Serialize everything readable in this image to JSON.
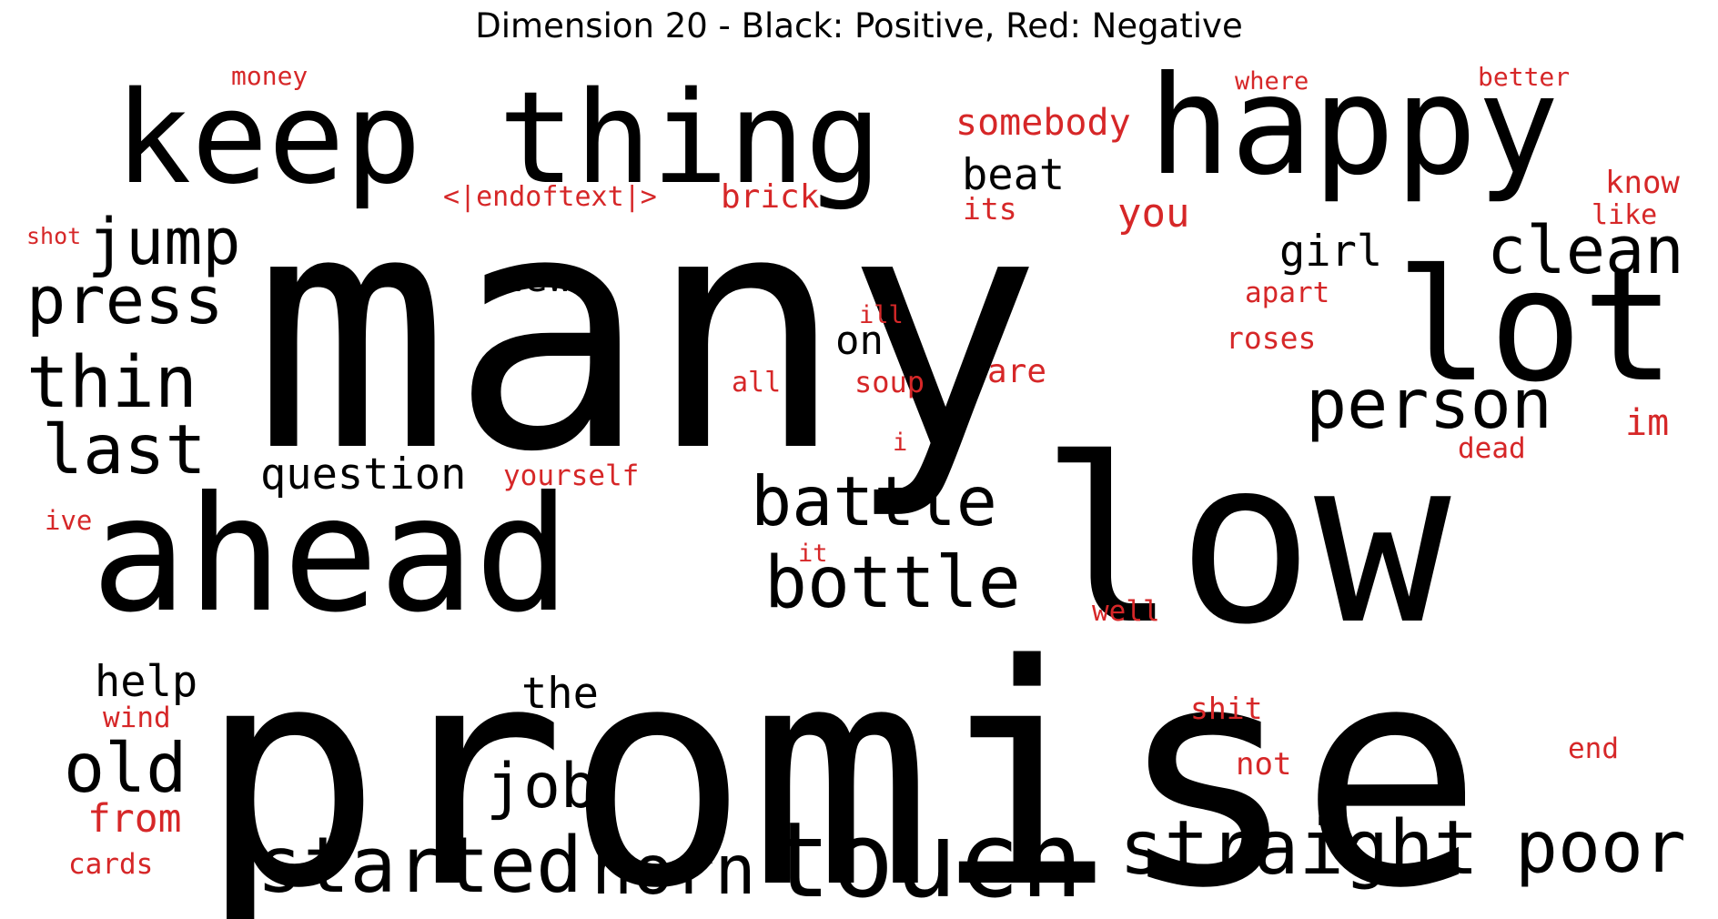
{
  "title": "Dimension 20 - Black: Positive, Red: Negative",
  "colors": {
    "positive": "#000000",
    "negative": "#d62728"
  },
  "words": [
    {
      "text": "many",
      "sign": "positive"
    },
    {
      "text": "promise",
      "sign": "positive"
    },
    {
      "text": "ahead",
      "sign": "positive"
    },
    {
      "text": "low",
      "sign": "positive"
    },
    {
      "text": "keep thing",
      "sign": "positive"
    },
    {
      "text": "happy",
      "sign": "positive"
    },
    {
      "text": "lot",
      "sign": "positive"
    },
    {
      "text": "touch",
      "sign": "positive"
    },
    {
      "text": "straight",
      "sign": "positive"
    },
    {
      "text": "started",
      "sign": "positive"
    },
    {
      "text": "horn",
      "sign": "positive"
    },
    {
      "text": "poor",
      "sign": "positive"
    },
    {
      "text": "battle",
      "sign": "positive"
    },
    {
      "text": "bottle",
      "sign": "positive"
    },
    {
      "text": "person",
      "sign": "positive"
    },
    {
      "text": "clean",
      "sign": "positive"
    },
    {
      "text": "press",
      "sign": "positive"
    },
    {
      "text": "thin",
      "sign": "positive"
    },
    {
      "text": "jump",
      "sign": "positive"
    },
    {
      "text": "last",
      "sign": "positive"
    },
    {
      "text": "old",
      "sign": "positive"
    },
    {
      "text": "job",
      "sign": "positive"
    },
    {
      "text": "question",
      "sign": "positive"
    },
    {
      "text": "help",
      "sign": "positive"
    },
    {
      "text": "the",
      "sign": "positive"
    },
    {
      "text": "beat",
      "sign": "positive"
    },
    {
      "text": "girl",
      "sign": "positive"
    },
    {
      "text": "new",
      "sign": "positive"
    },
    {
      "text": "on",
      "sign": "positive"
    },
    {
      "text": "somebody",
      "sign": "negative"
    },
    {
      "text": "you",
      "sign": "negative"
    },
    {
      "text": "money",
      "sign": "negative"
    },
    {
      "text": "where",
      "sign": "negative"
    },
    {
      "text": "better",
      "sign": "negative"
    },
    {
      "text": "know",
      "sign": "negative"
    },
    {
      "text": "like",
      "sign": "negative"
    },
    {
      "text": "<|endoftext|>",
      "sign": "negative"
    },
    {
      "text": "brick",
      "sign": "negative"
    },
    {
      "text": "its",
      "sign": "negative"
    },
    {
      "text": "shot",
      "sign": "negative"
    },
    {
      "text": "apart",
      "sign": "negative"
    },
    {
      "text": "roses",
      "sign": "negative"
    },
    {
      "text": "ill",
      "sign": "negative"
    },
    {
      "text": "are",
      "sign": "negative"
    },
    {
      "text": "all",
      "sign": "negative"
    },
    {
      "text": "soup",
      "sign": "negative"
    },
    {
      "text": "im",
      "sign": "negative"
    },
    {
      "text": "i",
      "sign": "negative"
    },
    {
      "text": "dead",
      "sign": "negative"
    },
    {
      "text": "yourself",
      "sign": "negative"
    },
    {
      "text": "ive",
      "sign": "negative"
    },
    {
      "text": "it",
      "sign": "negative"
    },
    {
      "text": "well",
      "sign": "negative"
    },
    {
      "text": "shit",
      "sign": "negative"
    },
    {
      "text": "end",
      "sign": "negative"
    },
    {
      "text": "not",
      "sign": "negative"
    },
    {
      "text": "wind",
      "sign": "negative"
    },
    {
      "text": "from",
      "sign": "negative"
    },
    {
      "text": "cards",
      "sign": "negative"
    }
  ]
}
